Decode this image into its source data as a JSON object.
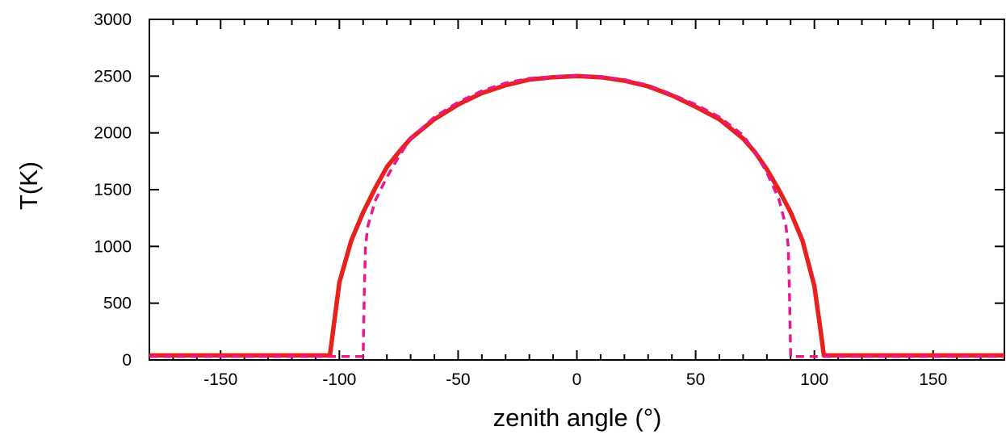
{
  "chart_data": {
    "type": "line",
    "title": "",
    "xlabel": "zenith angle (°)",
    "ylabel": "T(K)",
    "xlim": [
      -180,
      180
    ],
    "ylim": [
      0,
      3000
    ],
    "xticks": [
      -150,
      -100,
      -50,
      0,
      50,
      100,
      150
    ],
    "xtick_labels": [
      "-150",
      "-100",
      "-50",
      "0",
      "50",
      "100",
      "150"
    ],
    "yticks": [
      0,
      500,
      1000,
      1500,
      2000,
      2500,
      3000
    ],
    "ytick_labels": [
      "0",
      "500",
      "1000",
      "1500",
      "2000",
      "2500",
      "3000"
    ],
    "grid": false,
    "legend": null,
    "series": [
      {
        "style": "solid",
        "color": "#e8201e",
        "x": [
          -180,
          -104,
          -103,
          -100,
          -95,
          -90,
          -85,
          -80,
          -75,
          -70,
          -60,
          -50,
          -40,
          -30,
          -20,
          -10,
          0,
          10,
          20,
          30,
          40,
          50,
          60,
          70,
          75,
          80,
          85,
          90,
          95,
          100,
          103,
          104,
          180
        ],
        "y": [
          40,
          40,
          200,
          680,
          1050,
          1300,
          1510,
          1700,
          1830,
          1950,
          2120,
          2250,
          2350,
          2420,
          2470,
          2490,
          2500,
          2490,
          2460,
          2410,
          2330,
          2230,
          2120,
          1950,
          1830,
          1680,
          1500,
          1300,
          1050,
          650,
          200,
          40,
          40
        ]
      },
      {
        "style": "dashed",
        "color": "#e8198a",
        "x": [
          -180,
          -90,
          -89.5,
          -89,
          -88,
          -86,
          -85,
          -80,
          -75,
          -70,
          -60,
          -50,
          -40,
          -30,
          -20,
          -10,
          0,
          10,
          20,
          30,
          40,
          50,
          60,
          70,
          75,
          80,
          85,
          86,
          88,
          89,
          89.5,
          90,
          180
        ],
        "y": [
          30,
          30,
          600,
          1000,
          1180,
          1320,
          1400,
          1610,
          1790,
          1950,
          2140,
          2270,
          2370,
          2440,
          2480,
          2495,
          2500,
          2495,
          2470,
          2420,
          2340,
          2250,
          2140,
          1980,
          1830,
          1650,
          1420,
          1340,
          1180,
          1000,
          600,
          30,
          30
        ]
      }
    ]
  }
}
